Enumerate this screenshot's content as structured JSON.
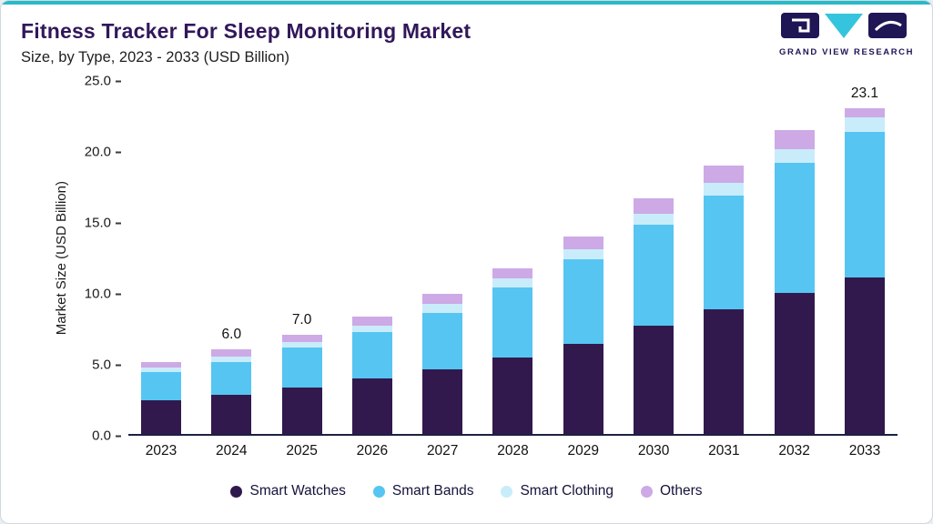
{
  "header": {
    "title": "Fitness Tracker For Sleep Monitoring Market",
    "subtitle": "Size, by Type, 2023 - 2033 (USD Billion)",
    "logo_text": "GRAND VIEW RESEARCH"
  },
  "colors": {
    "top_accent": "#29bac8",
    "title_purple": "#32175a",
    "axis_line": "#1b2140",
    "logo_navy": "#1f1656",
    "logo_cyan": "#35c4dd"
  },
  "chart_data": {
    "type": "bar",
    "stacked": true,
    "title": "Fitness Tracker For Sleep Monitoring Market Size, by Type, 2023 - 2033 (USD Billion)",
    "xlabel": "",
    "ylabel": "Market Size (USD Billion)",
    "ylim": [
      0,
      25
    ],
    "y_ticks": [
      "0.0",
      "5.0",
      "10.0",
      "15.0",
      "20.0",
      "25.0"
    ],
    "grid": false,
    "legend_position": "bottom",
    "categories": [
      "2023",
      "2024",
      "2025",
      "2026",
      "2027",
      "2028",
      "2029",
      "2030",
      "2031",
      "2032",
      "2033"
    ],
    "series": [
      {
        "name": "Smart Watches",
        "color": "#31194d",
        "values": [
          2.4,
          2.8,
          3.3,
          3.9,
          4.6,
          5.4,
          6.4,
          7.7,
          8.8,
          10.0,
          11.1
        ]
      },
      {
        "name": "Smart Bands",
        "color": "#56c5f2",
        "values": [
          2.0,
          2.3,
          2.8,
          3.3,
          4.0,
          5.0,
          6.0,
          7.1,
          8.1,
          9.2,
          10.3
        ]
      },
      {
        "name": "Smart Clothing",
        "color": "#c9ecfb",
        "values": [
          0.3,
          0.4,
          0.4,
          0.5,
          0.6,
          0.6,
          0.7,
          0.8,
          0.9,
          1.0,
          1.0
        ]
      },
      {
        "name": "Others",
        "color": "#cda9e6",
        "values": [
          0.4,
          0.5,
          0.5,
          0.6,
          0.7,
          0.7,
          0.9,
          1.1,
          1.2,
          1.3,
          0.7
        ]
      }
    ],
    "totals": [
      5.1,
      6.0,
      7.0,
      8.3,
      9.9,
      11.7,
      14.0,
      16.7,
      19.0,
      21.5,
      23.1
    ],
    "total_labels": [
      "",
      "6.0",
      "7.0",
      "",
      "",
      "",
      "",
      "",
      "",
      "",
      "23.1"
    ]
  }
}
